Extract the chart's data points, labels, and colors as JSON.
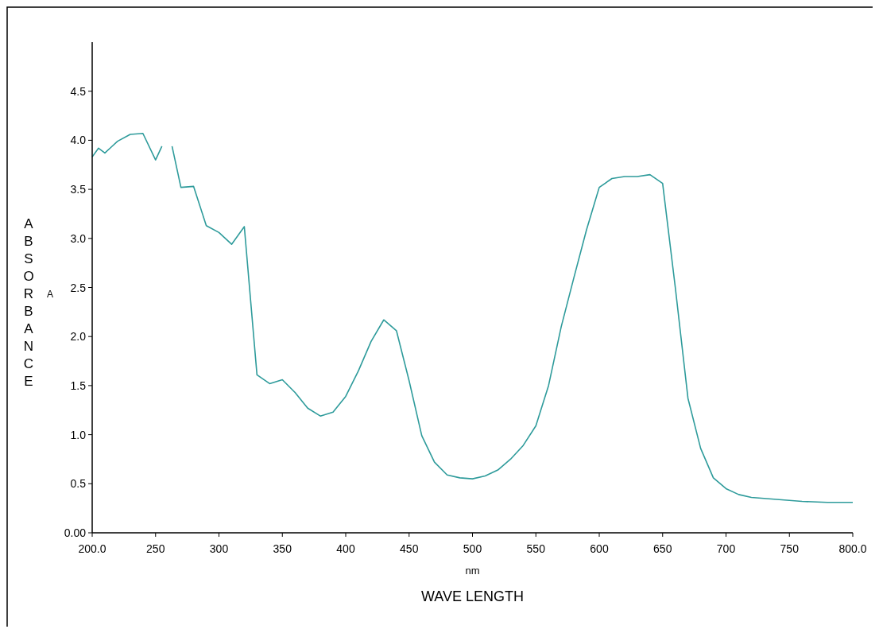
{
  "chart_data": {
    "type": "line",
    "xlabel": "WAVE LENGTH",
    "ylabel": "ABSORBANCE",
    "annotations": [
      "nm",
      "A"
    ],
    "x": [
      200,
      205,
      210,
      215,
      220,
      230,
      240,
      250,
      255,
      259,
      263,
      270,
      280,
      290,
      300,
      310,
      320,
      330,
      340,
      350,
      360,
      370,
      380,
      390,
      400,
      410,
      420,
      430,
      440,
      450,
      460,
      470,
      480,
      490,
      500,
      510,
      520,
      530,
      540,
      550,
      560,
      570,
      580,
      590,
      600,
      610,
      620,
      630,
      640,
      650,
      660,
      670,
      680,
      690,
      700,
      710,
      720,
      740,
      760,
      780,
      800
    ],
    "series": [
      {
        "color": "#2e9b9b",
        "values": [
          3.83,
          3.92,
          3.87,
          3.93,
          3.99,
          4.06,
          4.07,
          3.8,
          3.94,
          null,
          3.94,
          3.52,
          3.53,
          3.13,
          3.06,
          2.94,
          3.12,
          1.61,
          1.52,
          1.56,
          1.43,
          1.27,
          1.19,
          1.23,
          1.39,
          1.65,
          1.95,
          2.17,
          2.06,
          1.55,
          0.99,
          0.72,
          0.59,
          0.56,
          0.55,
          0.58,
          0.64,
          0.75,
          0.89,
          1.09,
          1.5,
          2.1,
          2.6,
          3.09,
          3.52,
          3.61,
          3.63,
          3.63,
          3.65,
          3.56,
          2.5,
          1.37,
          0.86,
          0.56,
          0.45,
          0.39,
          0.36,
          0.34,
          0.32,
          0.31,
          0.31
        ]
      }
    ],
    "xlim": [
      200,
      800
    ],
    "ylim": [
      0,
      5
    ],
    "xticks": [
      {
        "value": 200,
        "label": "200.0"
      },
      250,
      300,
      350,
      400,
      450,
      500,
      550,
      600,
      650,
      700,
      750,
      {
        "value": 800,
        "label": "800.0"
      }
    ],
    "yticks": [
      {
        "value": 0,
        "label": "0.00"
      },
      {
        "value": 0.5,
        "label": "0.5"
      },
      {
        "value": 1,
        "label": "1.0"
      },
      {
        "value": 1.5,
        "label": "1.5"
      },
      {
        "value": 2,
        "label": "2.0"
      },
      {
        "value": 2.5,
        "label": "2.5"
      },
      {
        "value": 3,
        "label": "3.0"
      },
      {
        "value": 3.5,
        "label": "3.5"
      },
      {
        "value": 4,
        "label": "4.0"
      },
      {
        "value": 4.5,
        "label": "4.5"
      }
    ],
    "marker": "none",
    "line_style": "solid"
  }
}
